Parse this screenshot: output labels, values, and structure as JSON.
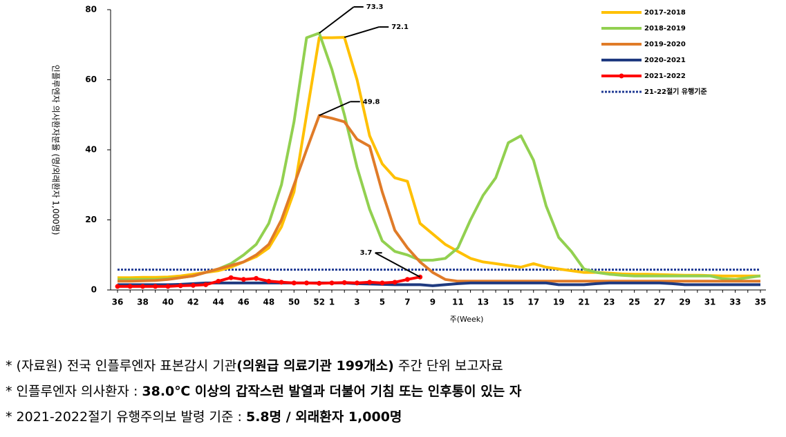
{
  "chart_data": {
    "type": "line",
    "y_label": "인플루엔자 의사환자분율 (명/외래환자 1,000명)",
    "x_label": "주(Week)",
    "categories": [
      "36",
      null,
      "38",
      null,
      "40",
      null,
      "42",
      null,
      "44",
      null,
      "46",
      null,
      "48",
      null,
      "50",
      null,
      "52",
      "1",
      null,
      "3",
      null,
      "5",
      null,
      "7",
      null,
      "9",
      null,
      "11",
      null,
      "13",
      null,
      "15",
      null,
      "17",
      null,
      "19",
      null,
      "21",
      null,
      "23",
      null,
      "25",
      null,
      "27",
      null,
      "29",
      null,
      "31",
      null,
      "33",
      null,
      "35"
    ],
    "ylim": [
      0,
      80
    ],
    "yticks": [
      0,
      20,
      40,
      60,
      80
    ],
    "legend": "top-right",
    "series": [
      {
        "name": "2017-2018",
        "color": "#ffc000",
        "values": [
          3.5,
          3.5,
          3.6,
          3.6,
          3.7,
          4,
          4.5,
          5,
          5.5,
          6.5,
          8,
          9.5,
          12,
          18,
          28,
          50,
          72,
          72,
          72.1,
          60,
          44,
          36,
          32,
          31,
          19,
          16,
          13,
          11,
          9,
          8,
          7.5,
          7,
          6.5,
          7.5,
          6.5,
          6,
          5.5,
          5,
          5,
          4.8,
          4.6,
          4.5,
          4.5,
          4.4,
          4.3,
          4.2,
          4.2,
          4.1,
          4,
          4,
          4,
          4
        ]
      },
      {
        "name": "2018-2019",
        "color": "#92d050",
        "values": [
          3,
          3,
          3,
          3,
          3.2,
          3.5,
          4,
          5,
          6,
          7.5,
          10,
          13,
          19,
          30,
          48,
          72,
          73.3,
          63,
          50,
          35,
          23,
          14,
          11,
          10,
          8.5,
          8.5,
          9,
          12,
          20,
          27,
          32,
          42,
          44,
          37,
          24,
          15,
          11,
          6,
          5,
          4.5,
          4.2,
          4,
          4,
          4,
          4,
          4,
          4,
          4,
          3.2,
          3,
          3.5,
          4
        ]
      },
      {
        "name": "2019-2020",
        "color": "#e07b28",
        "values": [
          2.5,
          2.5,
          2.6,
          2.7,
          3,
          3.5,
          4,
          5,
          6,
          7,
          8,
          10,
          13,
          20,
          30,
          40,
          49.8,
          49,
          48,
          43,
          41,
          28,
          17,
          12,
          8,
          5,
          3,
          2.5,
          2.5,
          2.5,
          2.5,
          2.5,
          2.5,
          2.5,
          2.5,
          2.5,
          2.5,
          2.5,
          2.5,
          2.5,
          2.5,
          2.5,
          2.5,
          2.5,
          2.5,
          2.5,
          2.5,
          2.5,
          2.5,
          2.5,
          2.5,
          2.5
        ]
      },
      {
        "name": "2020-2021",
        "color": "#1f3a80",
        "values": [
          1.5,
          1.5,
          1.5,
          1.5,
          1.5,
          1.6,
          1.8,
          2,
          2,
          2,
          2,
          2,
          2,
          2,
          2,
          2,
          2,
          2,
          2,
          1.8,
          1.7,
          1.6,
          1.5,
          1.5,
          1.5,
          1.2,
          1.5,
          1.8,
          2,
          2,
          2,
          2,
          2,
          2,
          2,
          1.5,
          1.5,
          1.5,
          1.8,
          2,
          2,
          2,
          2,
          2,
          1.8,
          1.5,
          1.5,
          1.5,
          1.5,
          1.5,
          1.5,
          1.5
        ]
      },
      {
        "name": "2021-2022",
        "color": "#ff0000",
        "markers": true,
        "values": [
          1,
          1,
          1,
          1,
          1,
          1.2,
          1.3,
          1.5,
          2.5,
          3.5,
          3,
          3.3,
          2.5,
          2.2,
          2,
          2,
          1.9,
          2,
          2.1,
          2,
          2.2,
          2,
          2.2,
          3,
          3.7,
          null,
          null,
          null,
          null,
          null,
          null,
          null,
          null,
          null,
          null,
          null,
          null,
          null,
          null,
          null,
          null,
          null,
          null,
          null,
          null,
          null,
          null,
          null,
          null,
          null,
          null,
          null
        ]
      }
    ],
    "threshold": {
      "name": "21-22절기 유행기준",
      "value": 5.8,
      "color": "#1f3a93"
    },
    "annotations": [
      {
        "text": "73.3",
        "series": 1,
        "index": 16
      },
      {
        "text": "72.1",
        "series": 0,
        "index": 18
      },
      {
        "text": "49.8",
        "series": 2,
        "index": 16
      },
      {
        "text": "3.7",
        "series": 4,
        "index": 24
      }
    ]
  },
  "notes": [
    [
      {
        "text": "* (자료원) 전국 인플루엔자 표본감시 기관"
      },
      {
        "text": "(의원급 의료기관 199개소)",
        "bold": true
      },
      {
        "text": " 주간 단위 보고자료"
      }
    ],
    [
      {
        "text": "* 인플루엔자 의사환자 : "
      },
      {
        "text": "38.0℃ 이상의 갑작스런 발열과 더불어 기침 또는 인후통이 있는 자",
        "bold": true
      }
    ],
    [
      {
        "text": "* 2021-2022절기 유행주의보 발령 기준 : "
      },
      {
        "text": "5.8명 / 외래환자 1,000명",
        "bold": true
      }
    ]
  ]
}
